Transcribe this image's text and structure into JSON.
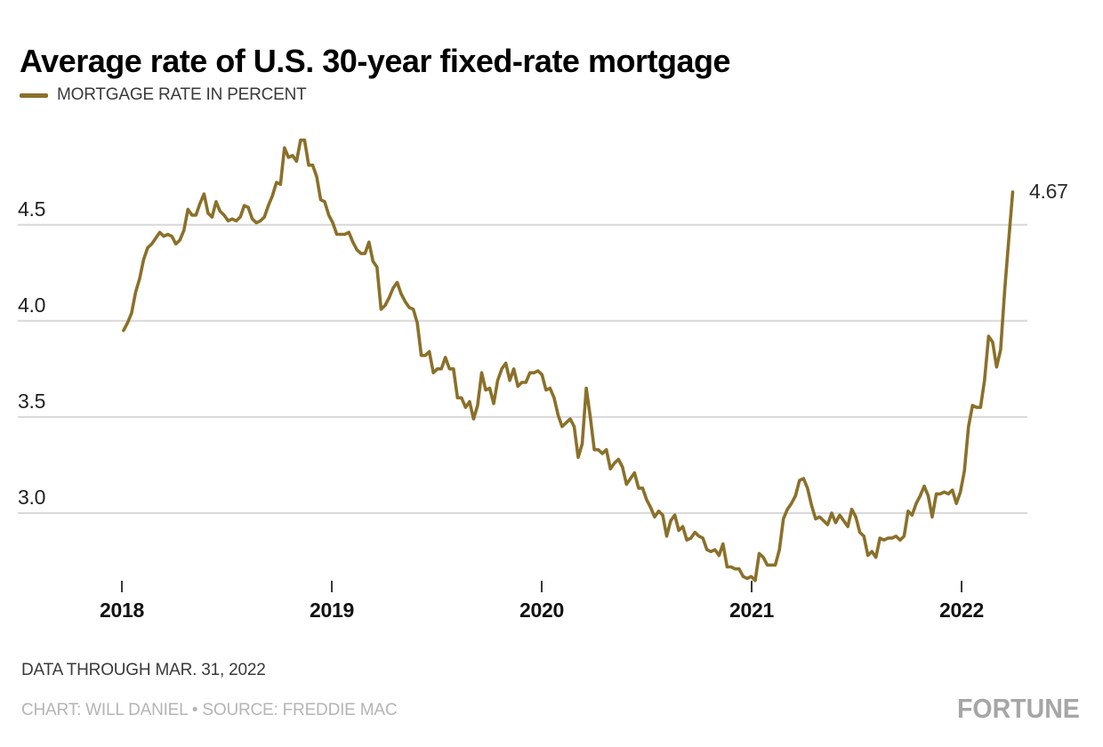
{
  "title": "Average rate of U.S. 30-year fixed-rate mortgage",
  "legend": {
    "label": "MORTGAGE RATE IN PERCENT"
  },
  "annotation": {
    "end_value": "4.67"
  },
  "footer": {
    "note": "DATA THROUGH MAR. 31, 2022",
    "credit": "CHART: WILL DANIEL • SOURCE: FREDDIE MAC",
    "logo": "FORTUNE"
  },
  "colors": {
    "line": "#8a7029",
    "grid": "#d9d9d9",
    "tick": "#3a3a3a",
    "title_text": "#000000",
    "credit_text": "#b5b5b5",
    "logo_text": "#a6a6a6"
  },
  "chart_data": {
    "type": "line",
    "title": "Average rate of U.S. 30-year fixed-rate mortgage",
    "xlabel": "",
    "ylabel": "MORTGAGE RATE IN PERCENT",
    "grid": "horizontal-only",
    "legend_position": "top-left",
    "x_range": [
      2018.0,
      2022.3
    ],
    "ylim": [
      2.55,
      5.0
    ],
    "x_ticks": [
      {
        "t": 2018,
        "label": "2018"
      },
      {
        "t": 2019,
        "label": "2019"
      },
      {
        "t": 2020,
        "label": "2020"
      },
      {
        "t": 2021,
        "label": "2021"
      },
      {
        "t": 2022,
        "label": "2022"
      }
    ],
    "y_ticks": [
      {
        "v": 3.0,
        "label": "3.0"
      },
      {
        "v": 3.5,
        "label": "3.5"
      },
      {
        "v": 4.0,
        "label": "4.0"
      },
      {
        "v": 4.5,
        "label": "4.5"
      }
    ],
    "end_annotation": {
      "label": "4.67",
      "value": 4.67,
      "t": 2022.247
    },
    "series": [
      {
        "name": "MORTGAGE RATE IN PERCENT",
        "color": "#8a7029",
        "frequency": "weekly",
        "x_start_year": 2018.008,
        "x_step_years": 0.019166,
        "values": [
          3.95,
          3.99,
          4.04,
          4.15,
          4.22,
          4.32,
          4.38,
          4.4,
          4.43,
          4.46,
          4.44,
          4.45,
          4.44,
          4.4,
          4.42,
          4.47,
          4.58,
          4.55,
          4.55,
          4.61,
          4.66,
          4.56,
          4.54,
          4.62,
          4.57,
          4.55,
          4.52,
          4.53,
          4.52,
          4.54,
          4.6,
          4.59,
          4.53,
          4.51,
          4.52,
          4.54,
          4.6,
          4.65,
          4.72,
          4.71,
          4.9,
          4.85,
          4.86,
          4.83,
          4.94,
          4.94,
          4.81,
          4.81,
          4.75,
          4.63,
          4.62,
          4.55,
          4.51,
          4.45,
          4.45,
          4.45,
          4.46,
          4.41,
          4.37,
          4.35,
          4.35,
          4.41,
          4.31,
          4.28,
          4.06,
          4.08,
          4.12,
          4.17,
          4.2,
          4.14,
          4.1,
          4.07,
          4.06,
          3.99,
          3.82,
          3.82,
          3.84,
          3.73,
          3.75,
          3.75,
          3.81,
          3.75,
          3.75,
          3.6,
          3.6,
          3.55,
          3.58,
          3.49,
          3.56,
          3.73,
          3.64,
          3.65,
          3.57,
          3.69,
          3.75,
          3.78,
          3.69,
          3.75,
          3.66,
          3.68,
          3.68,
          3.73,
          3.73,
          3.74,
          3.72,
          3.64,
          3.65,
          3.6,
          3.51,
          3.45,
          3.47,
          3.49,
          3.45,
          3.29,
          3.36,
          3.65,
          3.5,
          3.33,
          3.33,
          3.31,
          3.33,
          3.23,
          3.26,
          3.28,
          3.24,
          3.15,
          3.18,
          3.21,
          3.13,
          3.13,
          3.07,
          3.03,
          2.98,
          3.01,
          2.99,
          2.88,
          2.96,
          2.99,
          2.91,
          2.93,
          2.86,
          2.87,
          2.9,
          2.88,
          2.87,
          2.81,
          2.8,
          2.81,
          2.78,
          2.84,
          2.72,
          2.72,
          2.71,
          2.71,
          2.67,
          2.66,
          2.67,
          2.65,
          2.79,
          2.77,
          2.73,
          2.73,
          2.73,
          2.81,
          2.97,
          3.02,
          3.05,
          3.09,
          3.17,
          3.18,
          3.13,
          3.04,
          2.97,
          2.98,
          2.96,
          2.94,
          3.0,
          2.95,
          2.99,
          2.96,
          2.93,
          3.02,
          2.98,
          2.9,
          2.88,
          2.78,
          2.8,
          2.77,
          2.87,
          2.86,
          2.87,
          2.87,
          2.88,
          2.86,
          2.88,
          3.01,
          2.99,
          3.05,
          3.09,
          3.14,
          3.09,
          2.98,
          3.1,
          3.1,
          3.11,
          3.1,
          3.12,
          3.05,
          3.11,
          3.22,
          3.45,
          3.56,
          3.55,
          3.55,
          3.69,
          3.92,
          3.89,
          3.76,
          3.85,
          4.16,
          4.42,
          4.67
        ]
      }
    ]
  }
}
